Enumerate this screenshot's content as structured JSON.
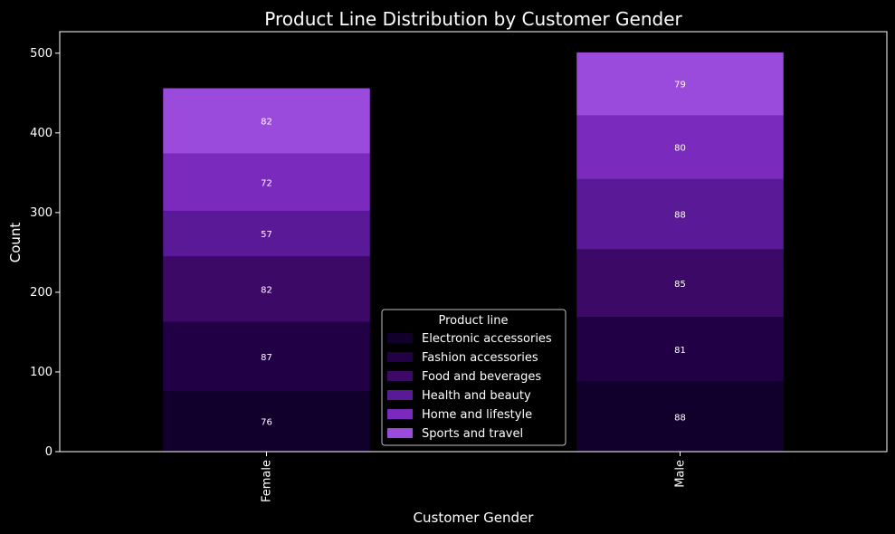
{
  "chart_data": {
    "type": "bar",
    "stacked": true,
    "title": "Product Line Distribution by Customer Gender",
    "xlabel": "Customer Gender",
    "ylabel": "Count",
    "categories": [
      "Female",
      "Male"
    ],
    "ylim": [
      0,
      527
    ],
    "yticks": [
      0,
      100,
      200,
      300,
      400,
      500
    ],
    "grid": false,
    "legend": {
      "title": "Product line",
      "placement": "bottom-center"
    },
    "series": [
      {
        "name": "Electronic accessories",
        "values": [
          76,
          88
        ],
        "color": "#12002c"
      },
      {
        "name": "Fashion accessories",
        "values": [
          87,
          81
        ],
        "color": "#210046"
      },
      {
        "name": "Food and beverages",
        "values": [
          82,
          85
        ],
        "color": "#3c0a66"
      },
      {
        "name": "Health and beauty",
        "values": [
          57,
          88
        ],
        "color": "#5a1a98"
      },
      {
        "name": "Home and lifestyle",
        "values": [
          72,
          80
        ],
        "color": "#7a2abd"
      },
      {
        "name": "Sports and travel",
        "values": [
          82,
          79
        ],
        "color": "#9b4bdc"
      }
    ]
  }
}
